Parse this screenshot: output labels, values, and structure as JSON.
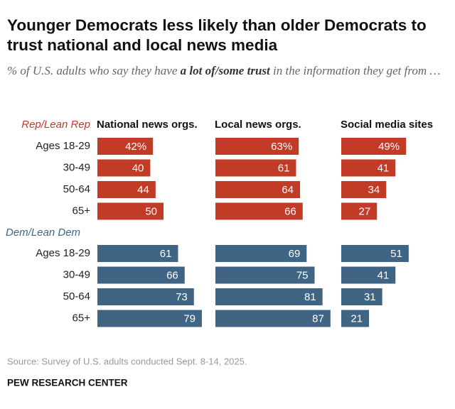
{
  "chart_data": {
    "type": "bar",
    "orientation": "horizontal",
    "title": "Younger Democrats less likely than older Democrats to trust national and local news media",
    "subtitle": [
      "% of U.S. adults who say they have",
      "a lot of/some trust",
      "in the information they get from …"
    ],
    "panels": [
      "National news orgs.",
      "Local news orgs.",
      "Social media sites"
    ],
    "categories": [
      "Ages 18-29",
      "30-49",
      "50-64",
      "65+"
    ],
    "series": [
      {
        "name": "Rep/Lean Rep",
        "color": "#c23b27",
        "values": [
          [
            42,
            40,
            44,
            50
          ],
          [
            63,
            61,
            64,
            66
          ],
          [
            49,
            41,
            34,
            27
          ]
        ],
        "value_labels": [
          [
            "42%",
            "40",
            "44",
            "50"
          ],
          [
            "63%",
            "61",
            "64",
            "66"
          ],
          [
            "49%",
            "41",
            "34",
            "27"
          ]
        ]
      },
      {
        "name": "Dem/Lean Dem",
        "color": "#406584",
        "values": [
          [
            61,
            66,
            73,
            79
          ],
          [
            69,
            75,
            81,
            87
          ],
          [
            51,
            41,
            31,
            21
          ]
        ],
        "value_labels": [
          [
            "61",
            "66",
            "73",
            "79"
          ],
          [
            "69",
            "75",
            "81",
            "87"
          ],
          [
            "51",
            "41",
            "31",
            "21"
          ]
        ]
      }
    ],
    "source": "Source: Survey of U.S. adults conducted Sept. 8-14, 2025.",
    "credit": "PEW RESEARCH CENTER"
  }
}
